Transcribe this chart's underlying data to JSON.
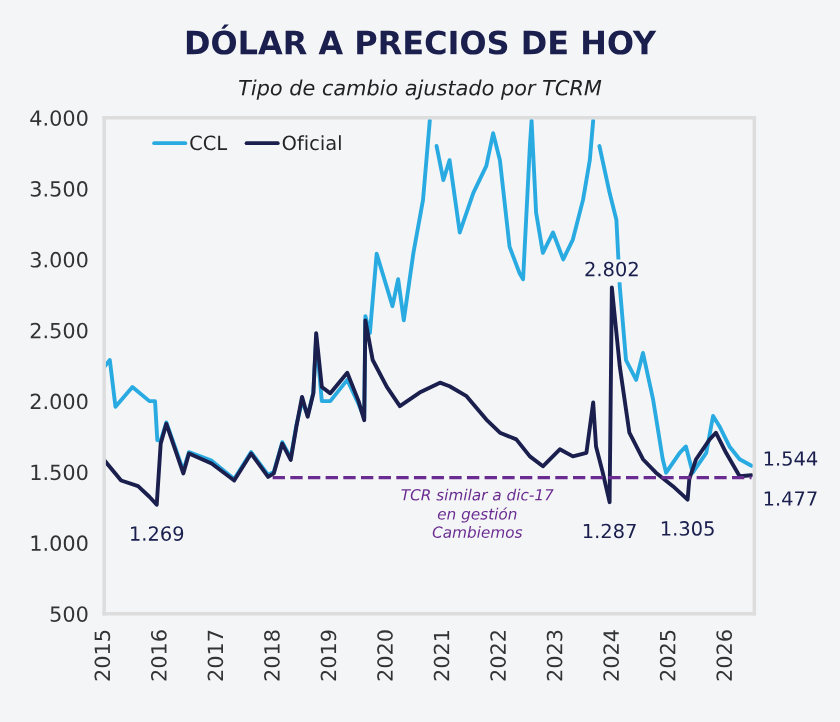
{
  "chart_data": {
    "type": "line",
    "title": "DÓLAR A PRECIOS DE HOY",
    "subtitle": "Tipo de cambio ajustado por TCRM",
    "series": [
      {
        "name": "CCL",
        "color": "#29abe2",
        "x": [
          2015.0,
          2015.1,
          2015.2,
          2015.5,
          2015.8,
          2015.9,
          2015.94,
          2016.0,
          2016.1,
          2016.4,
          2016.5,
          2016.9,
          2017.3,
          2017.6,
          2017.9,
          2018.0,
          2018.15,
          2018.3,
          2018.4,
          2018.5,
          2018.6,
          2018.7,
          2018.75,
          2018.85,
          2019.0,
          2019.3,
          2019.5,
          2019.6,
          2019.62,
          2019.7,
          2019.82,
          2020.1,
          2020.2,
          2020.3,
          2020.47,
          2020.64,
          2020.76,
          2020.82,
          2020.88,
          2021.0,
          2021.11,
          2021.29,
          2021.53,
          2021.76,
          2021.88,
          2022.0,
          2022.17,
          2022.35,
          2022.41,
          2022.53,
          2022.56,
          2022.64,
          2022.76,
          2022.94,
          2023.12,
          2023.29,
          2023.47,
          2023.59,
          2023.65,
          2023.71,
          2023.76,
          2023.94,
          2024.06,
          2024.12,
          2024.23,
          2024.41,
          2024.53,
          2024.71,
          2024.88,
          2024.94,
          2025.18,
          2025.29,
          2025.41,
          2025.65,
          2025.77,
          2025.88,
          2026.06,
          2026.24,
          2026.45
        ],
        "values": [
          2240,
          2290,
          1960,
          2100,
          2000,
          2000,
          1725,
          1720,
          1850,
          1510,
          1640,
          1580,
          1450,
          1640,
          1480,
          1500,
          1710,
          1600,
          1830,
          2000,
          1900,
          2060,
          2450,
          2000,
          2000,
          2150,
          1980,
          1880,
          2600,
          2480,
          3040,
          2670,
          2860,
          2570,
          3046,
          3420,
          3980,
          null,
          3800,
          3560,
          3700,
          3190,
          3470,
          3660,
          3890,
          3700,
          3090,
          2900,
          2860,
          3800,
          3980,
          3330,
          3046,
          3190,
          3000,
          3140,
          3420,
          3700,
          3980,
          null,
          3800,
          3470,
          3280,
          2810,
          2290,
          2150,
          2340,
          2010,
          1590,
          1495,
          1635,
          1680,
          1495,
          1635,
          1895,
          1825,
          1680,
          1590,
          1544
        ]
      },
      {
        "name": "Oficial",
        "color": "#1a1f4e",
        "x": [
          2015.0,
          2015.3,
          2015.6,
          2015.8,
          2015.93,
          2016.0,
          2016.1,
          2016.4,
          2016.5,
          2016.9,
          2017.3,
          2017.6,
          2017.9,
          2018.0,
          2018.15,
          2018.3,
          2018.4,
          2018.5,
          2018.6,
          2018.7,
          2018.75,
          2018.85,
          2019.0,
          2019.3,
          2019.5,
          2019.6,
          2019.62,
          2019.75,
          2020.0,
          2020.23,
          2020.58,
          2020.94,
          2021.11,
          2021.41,
          2021.76,
          2022.0,
          2022.29,
          2022.53,
          2022.76,
          2023.06,
          2023.29,
          2023.53,
          2023.65,
          2023.7,
          2023.82,
          2023.94,
          2023.98,
          2024.12,
          2024.29,
          2024.53,
          2024.76,
          2025.06,
          2025.32,
          2025.35,
          2025.47,
          2025.71,
          2025.82,
          2026.0,
          2026.24,
          2026.45
        ],
        "values": [
          1584,
          1440,
          1400,
          1325,
          1269,
          1700,
          1840,
          1490,
          1630,
          1560,
          1440,
          1630,
          1465,
          1490,
          1700,
          1585,
          1820,
          2030,
          1890,
          2055,
          2480,
          2100,
          2055,
          2200,
          2000,
          1865,
          2570,
          2290,
          2100,
          1965,
          2060,
          2130,
          2105,
          2035,
          1870,
          1777,
          1730,
          1610,
          1540,
          1660,
          1610,
          1635,
          1990,
          1680,
          1495,
          1287,
          2802,
          2245,
          1777,
          1590,
          1495,
          1400,
          1305,
          1450,
          1590,
          1730,
          1777,
          1635,
          1470,
          1477
        ]
      },
      {
        "color": "#6a2c91",
        "line_style": "dashed",
        "x": [
          2017.98,
          2026.45
        ],
        "values": [
          1460,
          1460
        ]
      }
    ],
    "xlim": [
      2015,
      2026.5
    ],
    "xticks": [
      2015,
      2016,
      2017,
      2018,
      2019,
      2020,
      2021,
      2022,
      2023,
      2024,
      2025,
      2026
    ],
    "ylim": [
      500,
      4000
    ],
    "yticks": [
      500,
      {
        "value": 1000,
        "label": "1.000"
      },
      {
        "value": 1500,
        "label": "1.500"
      },
      {
        "value": 2000,
        "label": "2.000"
      },
      {
        "value": 2500,
        "label": "2.500"
      },
      {
        "value": 3000,
        "label": "3.000"
      },
      {
        "value": 3500,
        "label": "3.500"
      },
      {
        "value": 4000,
        "label": "4.000"
      }
    ],
    "grid": false,
    "legend": "top left",
    "annotations": [
      {
        "text": "1.269",
        "x": 2015.93,
        "y": 1269
      },
      {
        "text": "2.802",
        "x": 2023.98,
        "y": 2802
      },
      {
        "text": "1.287",
        "x": 2023.94,
        "y": 1287
      },
      {
        "text": "1.305",
        "x": 2025.32,
        "y": 1305
      },
      {
        "text": "1.544",
        "x": 2026.45,
        "y": 1544
      },
      {
        "text": "1.477",
        "x": 2026.45,
        "y": 1477
      },
      {
        "text": "TCR similar a dic-17\nen gestión\nCambiemos",
        "x": 2021.6,
        "y": 1460
      }
    ]
  }
}
